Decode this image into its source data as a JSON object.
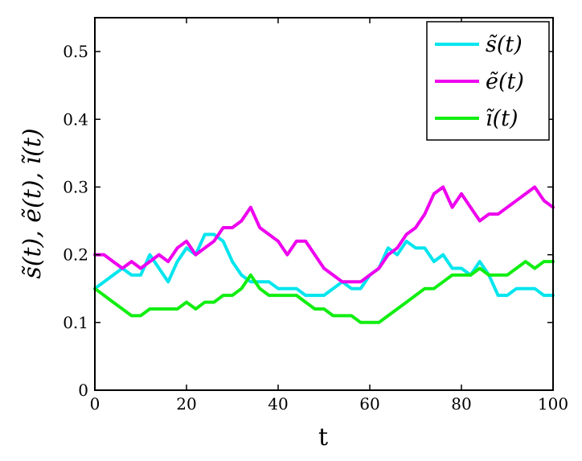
{
  "chart_data": {
    "type": "line",
    "title": "",
    "xlabel": "t",
    "ylabel": "s̃(t), ẽ(t), ĩ(t)",
    "xlim": [
      0,
      100
    ],
    "ylim": [
      0,
      0.55
    ],
    "x_ticks": [
      "0",
      "20",
      "40",
      "60",
      "80",
      "100"
    ],
    "y_ticks": [
      "0",
      "0.1",
      "0.2",
      "0.3",
      "0.4",
      "0.5"
    ],
    "grid": false,
    "legend_position": "top-right",
    "x": [
      0,
      2,
      4,
      6,
      8,
      10,
      12,
      14,
      16,
      18,
      20,
      22,
      24,
      26,
      28,
      30,
      32,
      34,
      36,
      38,
      40,
      42,
      44,
      46,
      48,
      50,
      52,
      54,
      56,
      58,
      60,
      62,
      64,
      66,
      68,
      70,
      72,
      74,
      76,
      78,
      80,
      82,
      84,
      86,
      88,
      90,
      92,
      94,
      96,
      98,
      100
    ],
    "series": [
      {
        "name": "s̃(t)",
        "color": "#00e5ee",
        "values": [
          0.15,
          0.16,
          0.17,
          0.18,
          0.17,
          0.17,
          0.2,
          0.18,
          0.16,
          0.19,
          0.21,
          0.2,
          0.23,
          0.23,
          0.22,
          0.19,
          0.17,
          0.16,
          0.16,
          0.16,
          0.15,
          0.15,
          0.15,
          0.14,
          0.14,
          0.14,
          0.15,
          0.16,
          0.15,
          0.15,
          0.17,
          0.18,
          0.21,
          0.2,
          0.22,
          0.21,
          0.21,
          0.19,
          0.2,
          0.18,
          0.18,
          0.17,
          0.19,
          0.17,
          0.14,
          0.14,
          0.15,
          0.15,
          0.15,
          0.14,
          0.14
        ]
      },
      {
        "name": "ẽ(t)",
        "color": "#ee00ee",
        "values": [
          0.2,
          0.2,
          0.19,
          0.18,
          0.19,
          0.18,
          0.19,
          0.2,
          0.19,
          0.21,
          0.22,
          0.2,
          0.21,
          0.22,
          0.24,
          0.24,
          0.25,
          0.27,
          0.24,
          0.23,
          0.22,
          0.2,
          0.22,
          0.22,
          0.2,
          0.18,
          0.17,
          0.16,
          0.16,
          0.16,
          0.17,
          0.18,
          0.2,
          0.21,
          0.23,
          0.24,
          0.26,
          0.29,
          0.3,
          0.27,
          0.29,
          0.27,
          0.25,
          0.26,
          0.26,
          0.27,
          0.28,
          0.29,
          0.3,
          0.28,
          0.27
        ]
      },
      {
        "name": "ĩ(t)",
        "color": "#11ee11",
        "values": [
          0.15,
          0.14,
          0.13,
          0.12,
          0.11,
          0.11,
          0.12,
          0.12,
          0.12,
          0.12,
          0.13,
          0.12,
          0.13,
          0.13,
          0.14,
          0.14,
          0.15,
          0.17,
          0.15,
          0.14,
          0.14,
          0.14,
          0.14,
          0.13,
          0.12,
          0.12,
          0.11,
          0.11,
          0.11,
          0.1,
          0.1,
          0.1,
          0.11,
          0.12,
          0.13,
          0.14,
          0.15,
          0.15,
          0.16,
          0.17,
          0.17,
          0.17,
          0.18,
          0.17,
          0.17,
          0.17,
          0.18,
          0.19,
          0.18,
          0.19,
          0.19
        ]
      }
    ]
  }
}
